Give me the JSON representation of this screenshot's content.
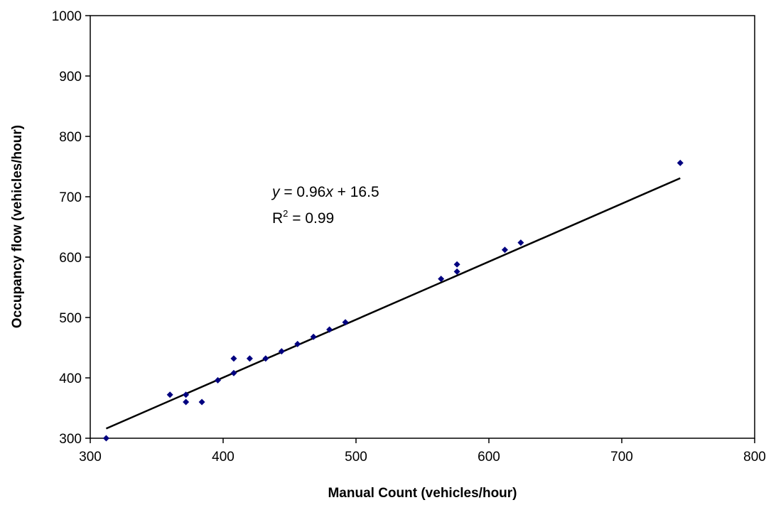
{
  "chart_data": {
    "type": "scatter",
    "title": "",
    "xlabel": "Manual Count (vehicles/hour)",
    "ylabel": "Occupancy flow (vehicles/hour)",
    "xlim": [
      300,
      800
    ],
    "ylim": [
      300,
      1000
    ],
    "xticks": [
      300,
      400,
      500,
      600,
      700,
      800
    ],
    "yticks": [
      300,
      400,
      500,
      600,
      700,
      800,
      900,
      1000
    ],
    "xtick_labels": [
      "300",
      "400",
      "500",
      "600",
      "700",
      "800"
    ],
    "ytick_labels": [
      "300",
      "400",
      "500",
      "600",
      "700",
      "800",
      "900",
      "1000"
    ],
    "grid": false,
    "legend": false,
    "marker": "diamond",
    "marker_color": "#000080",
    "line_color": "#000000",
    "series": [
      {
        "x": [
          312,
          360,
          372,
          372,
          384,
          396,
          408,
          408,
          420,
          432,
          444,
          456,
          468,
          480,
          492,
          564,
          576,
          576,
          612,
          624,
          744
        ],
        "y": [
          300,
          372,
          372,
          360,
          360,
          396,
          408,
          432,
          432,
          432,
          444,
          456,
          468,
          480,
          492,
          564,
          576,
          588,
          612,
          624,
          756
        ]
      }
    ],
    "trendline": {
      "slope": 0.96,
      "intercept": 16.5,
      "x_range": [
        312,
        744
      ]
    },
    "annotation": {
      "eq_y": "y",
      "eq_mid": " = 0.96",
      "eq_x": "x",
      "eq_tail": " + 16.5",
      "r_main": "R",
      "r_sup": "2",
      "r_tail": " = 0.99"
    }
  }
}
